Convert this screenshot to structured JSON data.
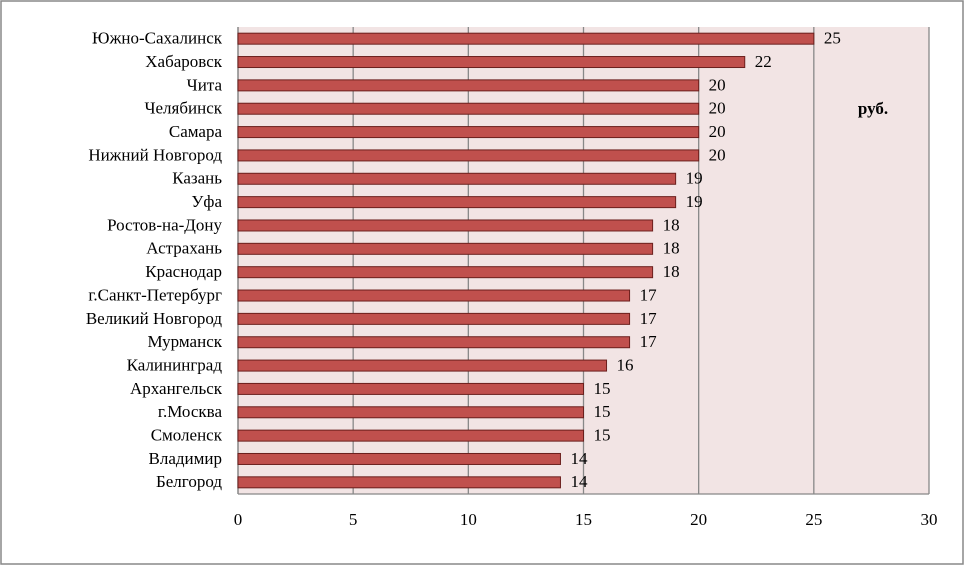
{
  "chart_data": {
    "type": "barh",
    "annotation": "руб.",
    "categories": [
      "Южно-Сахалинск",
      "Хабаровск",
      "Чита",
      "Челябинск",
      "Самара",
      "Нижний Новгород",
      "Казань",
      "Уфа",
      "Ростов-на-Дону",
      "Астрахань",
      "Краснодар",
      "г.Санкт-Петербург",
      "Великий Новгород",
      "Мурманск",
      "Калининград",
      "Архангельск",
      "г.Москва",
      "Смоленск",
      "Владимир",
      "Белгород"
    ],
    "values": [
      25,
      22,
      20,
      20,
      20,
      20,
      19,
      19,
      18,
      18,
      18,
      17,
      17,
      17,
      16,
      15,
      15,
      15,
      14,
      14
    ],
    "color": "#c0504d",
    "xlim": [
      0,
      30
    ],
    "xticks": [
      0,
      5,
      10,
      15,
      20,
      25,
      30
    ],
    "grid": true
  }
}
